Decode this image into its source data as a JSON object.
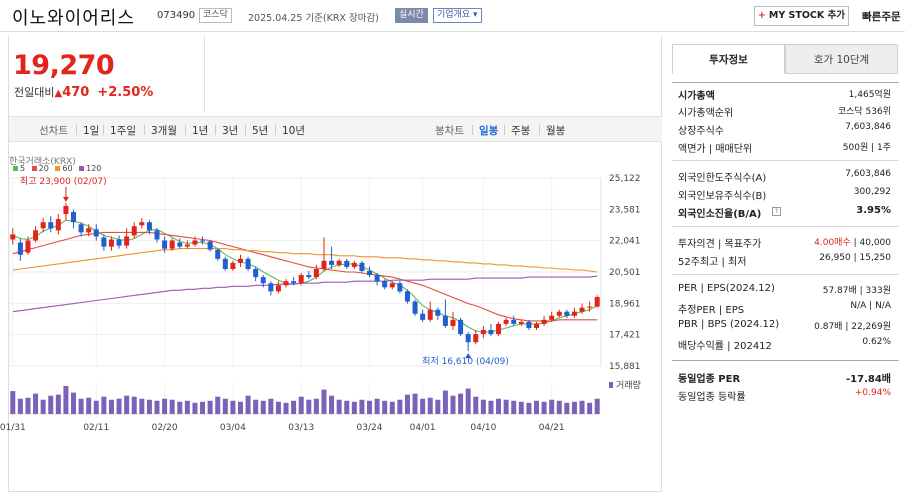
{
  "header": {
    "name": "이노와이어리스",
    "code": "073490",
    "market": "코스닥",
    "date": "2025.04.25 기준(KRX 장마감)",
    "realtime": "실시간",
    "company": "기업개요 ▾",
    "mystock": "MY STOCK 추가",
    "quick_order": "빠른주문"
  },
  "price": {
    "current": "19,270",
    "change_label": "전일대비",
    "change": "470",
    "pct": "+2.50%"
  },
  "periods": {
    "line_chart": "선차트",
    "day1": "1일",
    "week1": "1주일",
    "month3": "3개월",
    "year1": "1년",
    "year3": "3년",
    "year5": "5년",
    "year10": "10년",
    "candle": "봉차트",
    "daily": "일봉",
    "weekly": "주봉",
    "monthly": "월봉"
  },
  "chart_legend": {
    "exchange": "한국거래소(KRX)",
    "ma5": "5",
    "ma20": "20",
    "ma60": "60",
    "ma120": "120",
    "ma5_color": "#5cb85c",
    "ma20_color": "#e74c3c",
    "ma60_color": "#f0932b",
    "ma120_color": "#9b59b6"
  },
  "chart_data": {
    "type": "candlestick",
    "yticks": [
      "25,122",
      "23,581",
      "22,041",
      "20,501",
      "18,961",
      "17,421",
      "15,881"
    ],
    "ylim": [
      15881,
      25122
    ],
    "xticks": [
      "01/31",
      "02/11",
      "02/20",
      "03/04",
      "03/13",
      "03/24",
      "04/01",
      "04/10",
      "04/21"
    ],
    "high_label": "최고 23,900 (02/07)",
    "low_label": "최저 16,610 (04/09)",
    "volume_label": "거래량",
    "candles": [
      [
        22350,
        22100,
        22650,
        21850,
        1
      ],
      [
        21950,
        21350,
        22150,
        21050,
        0
      ],
      [
        21450,
        22050,
        22250,
        21350,
        1
      ],
      [
        22050,
        22550,
        22750,
        21950,
        1
      ],
      [
        22650,
        22950,
        23150,
        22450,
        1
      ],
      [
        22950,
        22650,
        23250,
        22450,
        0
      ],
      [
        22550,
        23100,
        23350,
        22350,
        1
      ],
      [
        23350,
        23750,
        23900,
        23050,
        1
      ],
      [
        23450,
        22950,
        23550,
        22650,
        0
      ],
      [
        22850,
        22450,
        22950,
        22250,
        0
      ],
      [
        22450,
        22650,
        22850,
        22250,
        1
      ],
      [
        22600,
        22250,
        22850,
        22050,
        0
      ],
      [
        22200,
        21750,
        22350,
        21550,
        0
      ],
      [
        21750,
        22100,
        22250,
        21550,
        1
      ],
      [
        22100,
        21800,
        22300,
        21650,
        0
      ],
      [
        21800,
        22250,
        22650,
        21650,
        1
      ],
      [
        22300,
        22750,
        22950,
        22150,
        1
      ],
      [
        22800,
        22950,
        23150,
        22650,
        1
      ],
      [
        22950,
        22550,
        23050,
        22350,
        0
      ],
      [
        22550,
        22100,
        22650,
        21950,
        0
      ],
      [
        22050,
        21650,
        22250,
        21450,
        0
      ],
      [
        21650,
        22050,
        22150,
        21550,
        1
      ],
      [
        21950,
        21750,
        22150,
        21650,
        0
      ],
      [
        21750,
        21850,
        22050,
        21650,
        1
      ],
      [
        21850,
        22050,
        22250,
        21750,
        1
      ],
      [
        22050,
        22000,
        22250,
        21850,
        0
      ],
      [
        22000,
        21600,
        22050,
        21500,
        0
      ],
      [
        21600,
        21150,
        21650,
        21050,
        0
      ],
      [
        21150,
        20650,
        21250,
        20550,
        0
      ],
      [
        20650,
        20950,
        21050,
        20550,
        1
      ],
      [
        20950,
        21150,
        21350,
        20750,
        1
      ],
      [
        21150,
        20650,
        21250,
        20550,
        0
      ],
      [
        20650,
        20250,
        20750,
        20050,
        0
      ],
      [
        20250,
        19950,
        20350,
        19750,
        0
      ],
      [
        19950,
        19550,
        20050,
        19350,
        0
      ],
      [
        19550,
        19850,
        20050,
        19450,
        1
      ],
      [
        19850,
        20050,
        20150,
        19750,
        1
      ],
      [
        20050,
        19950,
        20250,
        19850,
        0
      ],
      [
        19950,
        20350,
        20450,
        19850,
        1
      ],
      [
        20350,
        20250,
        20550,
        20150,
        0
      ],
      [
        20250,
        20650,
        20850,
        20150,
        1
      ],
      [
        20650,
        21050,
        22200,
        20550,
        1
      ],
      [
        21050,
        20850,
        21750,
        20650,
        0
      ],
      [
        20850,
        21050,
        21150,
        20750,
        1
      ],
      [
        21050,
        20750,
        21150,
        20650,
        0
      ],
      [
        20750,
        20950,
        21050,
        20650,
        1
      ],
      [
        20950,
        20550,
        21050,
        20450,
        0
      ],
      [
        20550,
        20350,
        20750,
        20250,
        0
      ],
      [
        20350,
        20050,
        20450,
        19850,
        0
      ],
      [
        20050,
        19750,
        20150,
        19650,
        0
      ],
      [
        19750,
        19950,
        20050,
        19650,
        1
      ],
      [
        19950,
        19550,
        20050,
        19450,
        0
      ],
      [
        19550,
        19050,
        19650,
        18950,
        0
      ],
      [
        19050,
        18450,
        19150,
        18350,
        0
      ],
      [
        18450,
        18150,
        18650,
        18050,
        0
      ],
      [
        18150,
        18650,
        19050,
        18050,
        1
      ],
      [
        18650,
        18350,
        18750,
        18150,
        0
      ],
      [
        18350,
        17850,
        19150,
        17750,
        0
      ],
      [
        17850,
        18150,
        18550,
        17650,
        1
      ],
      [
        18150,
        17450,
        18250,
        17350,
        0
      ],
      [
        17450,
        17050,
        17550,
        16610,
        0
      ],
      [
        17050,
        17450,
        17650,
        16950,
        1
      ],
      [
        17450,
        17650,
        17850,
        17250,
        1
      ],
      [
        17650,
        17450,
        17950,
        17350,
        0
      ],
      [
        17450,
        17950,
        18050,
        17350,
        1
      ],
      [
        17950,
        18150,
        18250,
        17850,
        1
      ],
      [
        18150,
        17950,
        18350,
        17850,
        0
      ],
      [
        17950,
        18050,
        18150,
        17850,
        1
      ],
      [
        18050,
        17750,
        18150,
        17650,
        0
      ],
      [
        17750,
        17950,
        18050,
        17650,
        1
      ],
      [
        17950,
        18150,
        18350,
        17850,
        1
      ],
      [
        18150,
        18350,
        18550,
        18050,
        1
      ],
      [
        18350,
        18550,
        18650,
        18250,
        1
      ],
      [
        18550,
        18350,
        18650,
        18250,
        0
      ],
      [
        18350,
        18550,
        18750,
        18250,
        1
      ],
      [
        18550,
        18750,
        18950,
        18450,
        1
      ],
      [
        18750,
        18800,
        19050,
        18550,
        1
      ],
      [
        18800,
        19270,
        19350,
        18750,
        1
      ]
    ],
    "volumes": [
      45,
      30,
      32,
      40,
      28,
      36,
      38,
      55,
      42,
      30,
      32,
      26,
      34,
      28,
      30,
      36,
      34,
      30,
      28,
      26,
      30,
      28,
      24,
      26,
      22,
      24,
      26,
      34,
      30,
      26,
      24,
      36,
      28,
      26,
      30,
      24,
      22,
      26,
      34,
      28,
      30,
      48,
      36,
      28,
      26,
      24,
      28,
      26,
      30,
      26,
      24,
      28,
      38,
      40,
      30,
      32,
      28,
      46,
      36,
      40,
      50,
      34,
      28,
      26,
      30,
      28,
      26,
      24,
      22,
      26,
      24,
      28,
      26,
      22,
      24,
      26,
      22,
      30
    ],
    "ma_series": [
      {
        "name": "5",
        "values": [
          22300,
          22150,
          22100,
          22250,
          22500,
          22650,
          22800,
          23050,
          23000,
          22900,
          22750,
          22500,
          22300,
          22200,
          22100,
          22050,
          22150,
          22350,
          22550,
          22600,
          22400,
          22200,
          22000,
          21900,
          21950,
          21950,
          21850,
          21650,
          21350,
          21150,
          21000,
          20900,
          20750,
          20500,
          20300,
          20100,
          19950,
          19900,
          19950,
          20050,
          20250,
          20550,
          20750,
          20850,
          20900,
          20900,
          20750,
          20600,
          20400,
          20200,
          20000,
          19850,
          19600,
          19250,
          18850,
          18650,
          18500,
          18350,
          18250,
          18050,
          17800,
          17600,
          17550,
          17550,
          17650,
          17750,
          17850,
          17950,
          17950,
          17950,
          18000,
          18100,
          18250,
          18350,
          18450,
          18550,
          18650,
          18850
        ]
      },
      {
        "name": "20",
        "values": [
          21400,
          21500,
          21600,
          21700,
          21800,
          21900,
          22000,
          22100,
          22200,
          22300,
          22350,
          22400,
          22450,
          22450,
          22450,
          22450,
          22450,
          22450,
          22450,
          22400,
          22350,
          22300,
          22250,
          22200,
          22150,
          22100,
          22050,
          21950,
          21850,
          21750,
          21650,
          21550,
          21450,
          21350,
          21250,
          21150,
          21050,
          20950,
          20850,
          20750,
          20700,
          20650,
          20600,
          20550,
          20500,
          20500,
          20450,
          20400,
          20350,
          20300,
          20250,
          20150,
          20050,
          19950,
          19850,
          19700,
          19550,
          19400,
          19250,
          19100,
          18950,
          18850,
          18700,
          18550,
          18400,
          18300,
          18200,
          18150,
          18100,
          18100,
          18100,
          18100,
          18150,
          18150,
          18150,
          18150,
          18150,
          18150
        ]
      },
      {
        "name": "60",
        "values": [
          20600,
          20650,
          20700,
          20750,
          20800,
          20850,
          20900,
          20950,
          21000,
          21050,
          21100,
          21150,
          21200,
          21250,
          21300,
          21350,
          21400,
          21450,
          21500,
          21550,
          21600,
          21600,
          21650,
          21650,
          21650,
          21650,
          21650,
          21650,
          21650,
          21600,
          21600,
          21550,
          21550,
          21500,
          21500,
          21450,
          21450,
          21400,
          21400,
          21400,
          21350,
          21350,
          21350,
          21300,
          21300,
          21300,
          21250,
          21250,
          21250,
          21200,
          21200,
          21200,
          21150,
          21150,
          21100,
          21100,
          21050,
          21050,
          21000,
          21000,
          20950,
          20950,
          20900,
          20900,
          20850,
          20850,
          20800,
          20800,
          20750,
          20750,
          20700,
          20700,
          20650,
          20650,
          20600,
          20600,
          20550,
          20500
        ]
      },
      {
        "name": "120",
        "values": [
          18550,
          18600,
          18650,
          18700,
          18750,
          18800,
          18850,
          18900,
          18950,
          19000,
          19050,
          19100,
          19150,
          19200,
          19250,
          19300,
          19350,
          19400,
          19450,
          19500,
          19550,
          19600,
          19600,
          19650,
          19650,
          19700,
          19700,
          19750,
          19750,
          19800,
          19800,
          19800,
          19850,
          19850,
          19850,
          19900,
          19900,
          19900,
          19950,
          19950,
          19950,
          20000,
          20000,
          20000,
          20000,
          20050,
          20050,
          20050,
          20050,
          20050,
          20100,
          20100,
          20100,
          20100,
          20100,
          20150,
          20150,
          20150,
          20150,
          20150,
          20150,
          20200,
          20200,
          20200,
          20200,
          20200,
          20200,
          20200,
          20250,
          20250,
          20250,
          20250,
          20250,
          20250,
          20250,
          20250,
          20250,
          20300
        ]
      }
    ]
  },
  "side": {
    "tab_info": "투자정보",
    "tab_quote": "호가 10단계",
    "market_cap_label": "시가총액",
    "market_cap_value": "1,465억원",
    "cap_rank_label": "시가총액순위",
    "cap_rank_value": "코스닥 536위",
    "shares_label": "상장주식수",
    "shares_value": "7,603,846",
    "par_label": "액면가 | 매매단위",
    "par_value": "500원 | 1주",
    "foreign_limit_label": "외국인한도주식수(A)",
    "foreign_limit_value": "7,603,846",
    "foreign_hold_label": "외국인보유주식수(B)",
    "foreign_hold_value": "300,292",
    "foreign_ratio_label": "외국인소진율(B/A)",
    "foreign_ratio_value": "3.95%",
    "opinion_label": "투자의견 | 목표주가",
    "opinion_value_a": "4.00매수",
    "opinion_value_b": "| 40,000",
    "range_label": "52주최고 | 최저",
    "range_value": "26,950 | 15,250",
    "per_label": "PER | EPS(2024.12)",
    "per_value": "57.87배 | 333원",
    "est_per_label": "추정PER | EPS",
    "est_per_value": "N/A | N/A",
    "pbr_label": "PBR | BPS (2024.12)",
    "pbr_value": "0.87배 | 22,269원",
    "div_label": "배당수익률 | 202412",
    "div_value": "0.62%",
    "ind_per_label": "동일업종 PER",
    "ind_per_value": "-17.84배",
    "ind_rate_label": "동일업종 등락률",
    "ind_rate_value": "+0.94%"
  }
}
